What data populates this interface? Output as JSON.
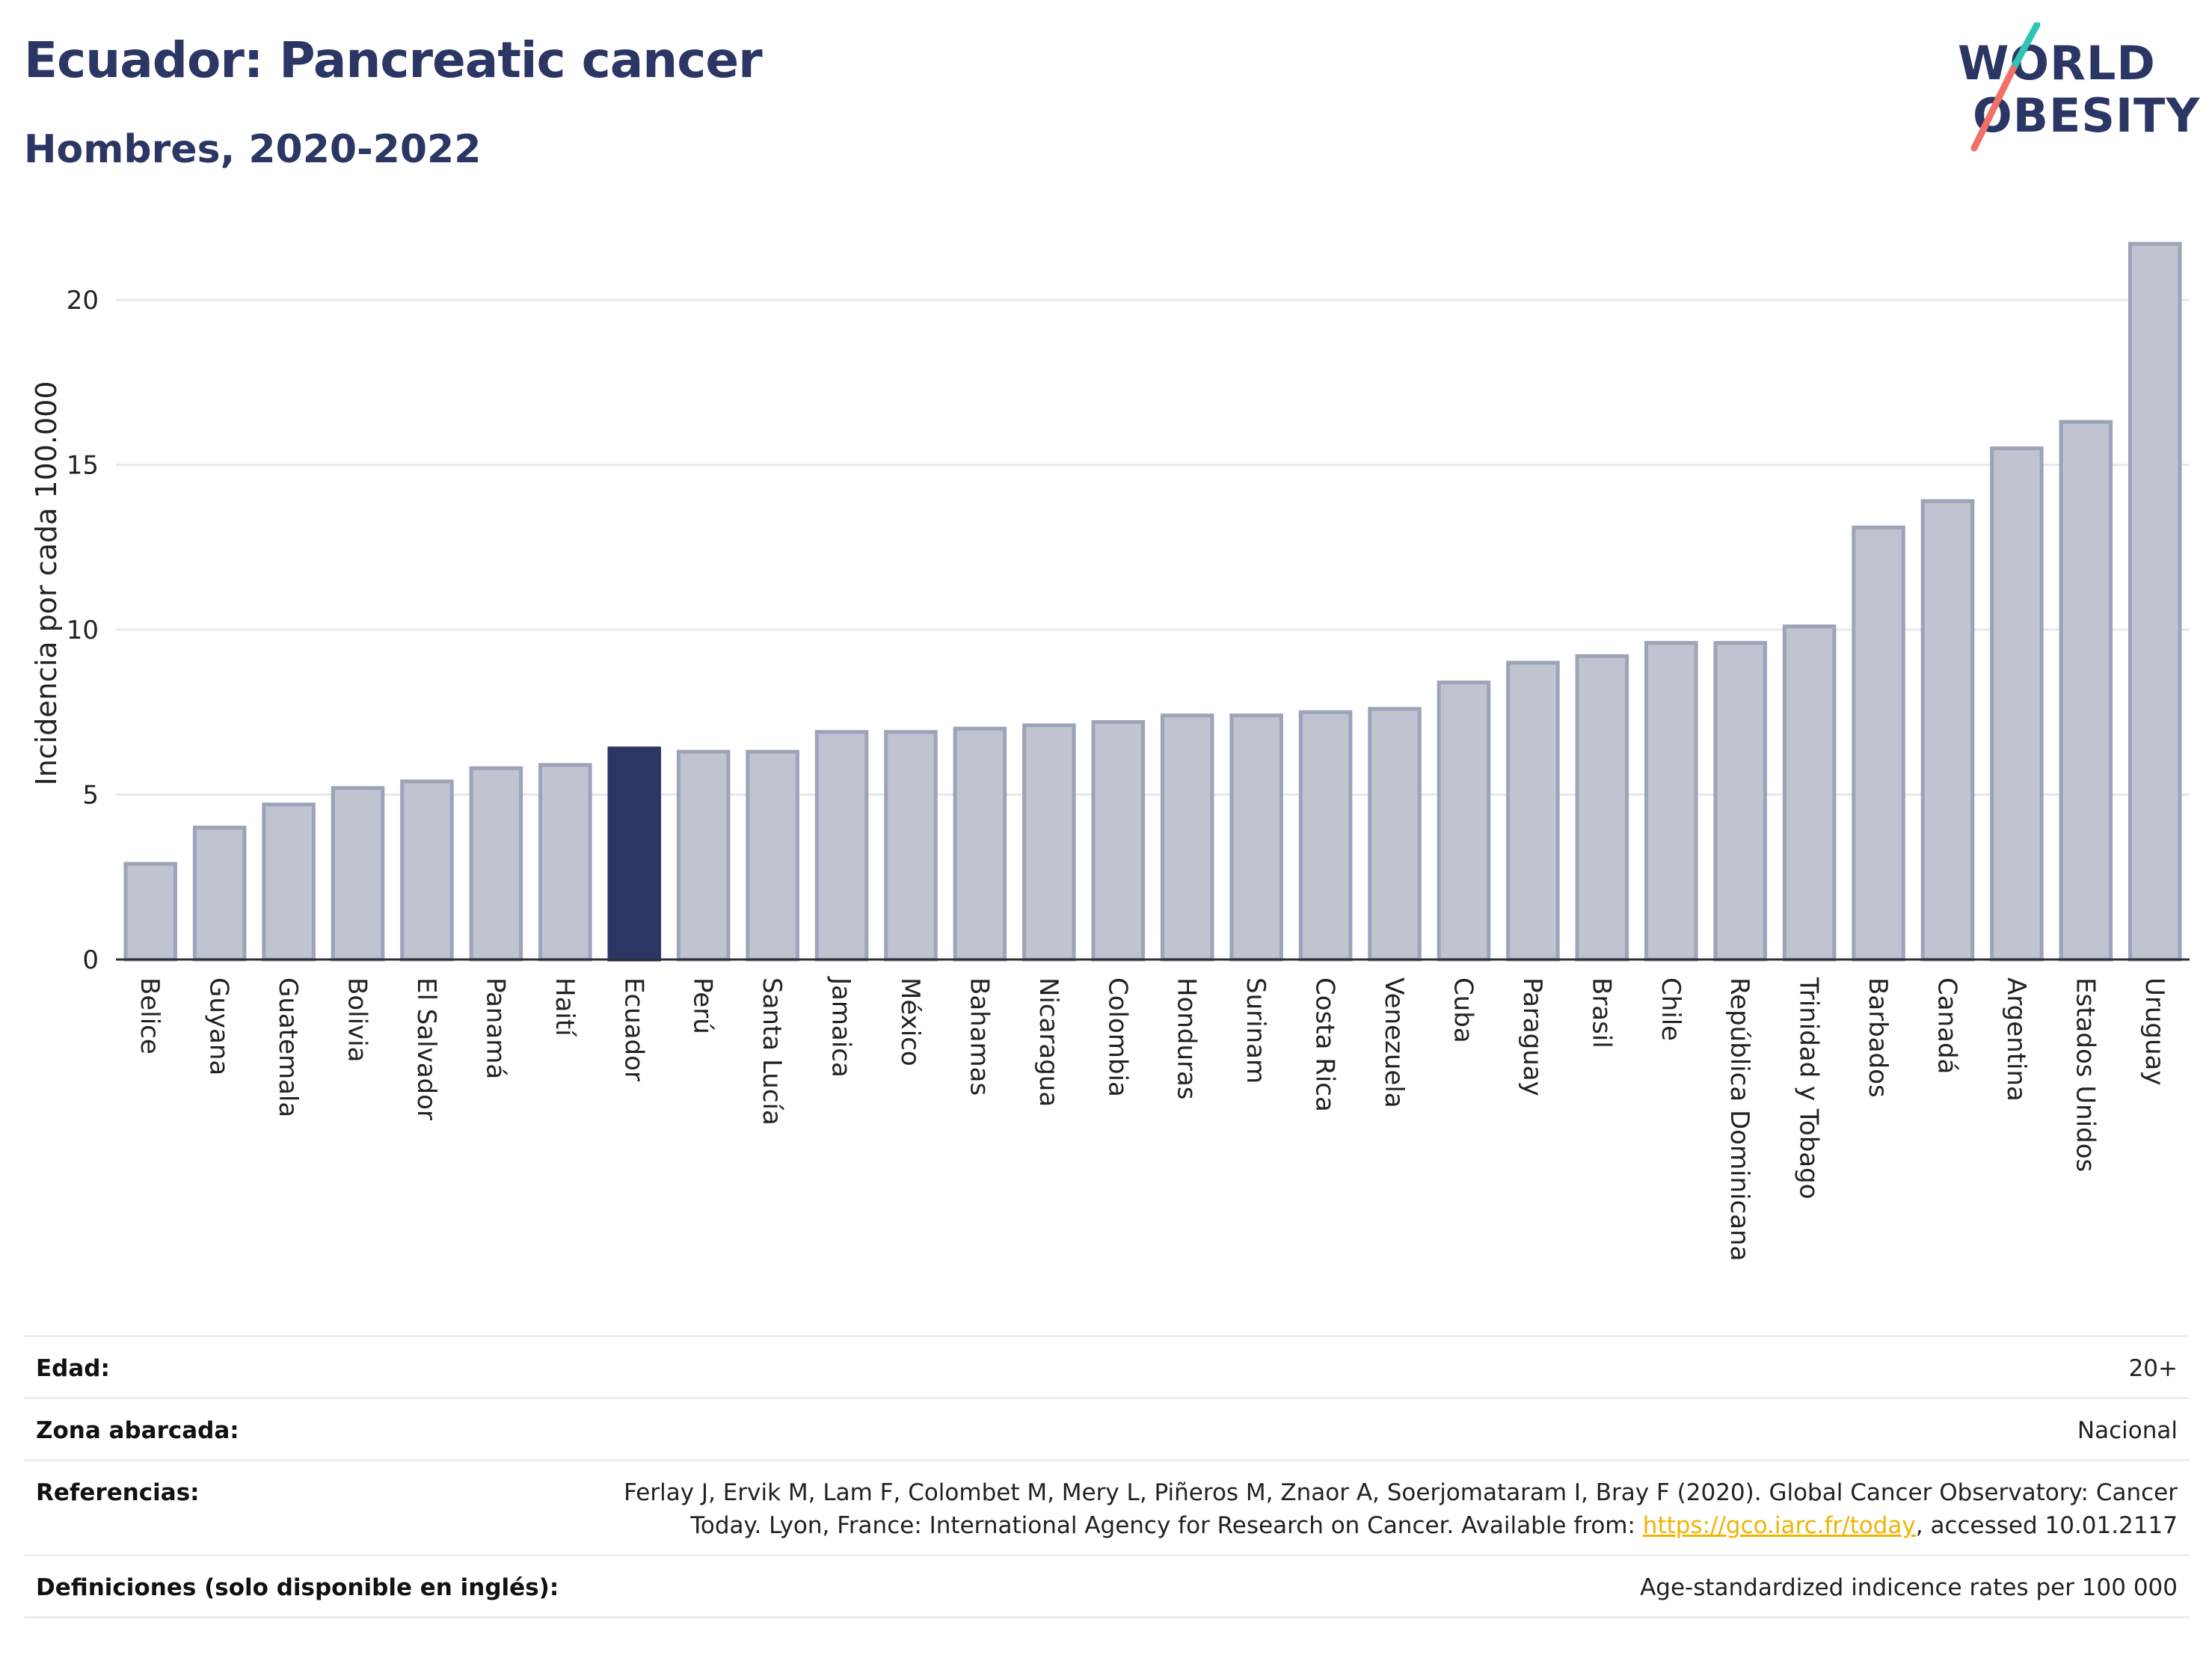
{
  "header": {
    "title": "Ecuador: Pancreatic cancer",
    "subtitle": "Hombres, 2020-2022"
  },
  "logo": {
    "line1": "WORLD",
    "line2": "OBESITY"
  },
  "colors": {
    "highlight": "#2b3664",
    "bar_fill": "#c0c4d0",
    "bar_stroke": "#9da3b8",
    "grid": "#e6e8ee",
    "logo_teal": "#2ec4b6",
    "logo_coral": "#f07167"
  },
  "chart_data": {
    "type": "bar",
    "ylabel": "Incidencia por cada 100.000",
    "ylim": [
      0,
      22
    ],
    "yticks": [
      0,
      5,
      10,
      15,
      20
    ],
    "grid": true,
    "highlight_category": "Ecuador",
    "categories": [
      "Belice",
      "Guyana",
      "Guatemala",
      "Bolivia",
      "El Salvador",
      "Panamá",
      "Haití",
      "Ecuador",
      "Perú",
      "Santa Lucía",
      "Jamaica",
      "México",
      "Bahamas",
      "Nicaragua",
      "Colombia",
      "Honduras",
      "Surinam",
      "Costa Rica",
      "Venezuela",
      "Cuba",
      "Paraguay",
      "Brasil",
      "Chile",
      "República Dominicana",
      "Trinidad y Tobago",
      "Barbados",
      "Canadá",
      "Argentina",
      "Estados Unidos",
      "Uruguay"
    ],
    "values": [
      2.9,
      4.0,
      4.7,
      5.2,
      5.4,
      5.8,
      5.9,
      6.4,
      6.3,
      6.3,
      6.9,
      6.9,
      7.0,
      7.1,
      7.2,
      7.4,
      7.4,
      7.5,
      7.6,
      8.4,
      9.0,
      9.2,
      9.6,
      9.6,
      10.1,
      13.1,
      13.9,
      15.5,
      16.3,
      21.7
    ]
  },
  "info": {
    "edad_label": "Edad:",
    "edad_value": "20+",
    "zona_label": "Zona abarcada:",
    "zona_value": "Nacional",
    "ref_label": "Referencias:",
    "ref_line1": "Ferlay J, Ervik M, Lam F, Colombet M, Mery L, Piñeros M, Znaor A, Soerjomataram I, Bray F (2020). Global Cancer Observatory: Cancer",
    "ref_line2_pre": "Today. Lyon, France: International Agency for Research on Cancer. Available from: ",
    "ref_link": "https://gco.iarc.fr/today",
    "ref_line2_post": ", accessed 10.01.2117",
    "def_label": "Definiciones (solo disponible en inglés):",
    "def_value": "Age-standardized indicence rates per 100 000"
  }
}
